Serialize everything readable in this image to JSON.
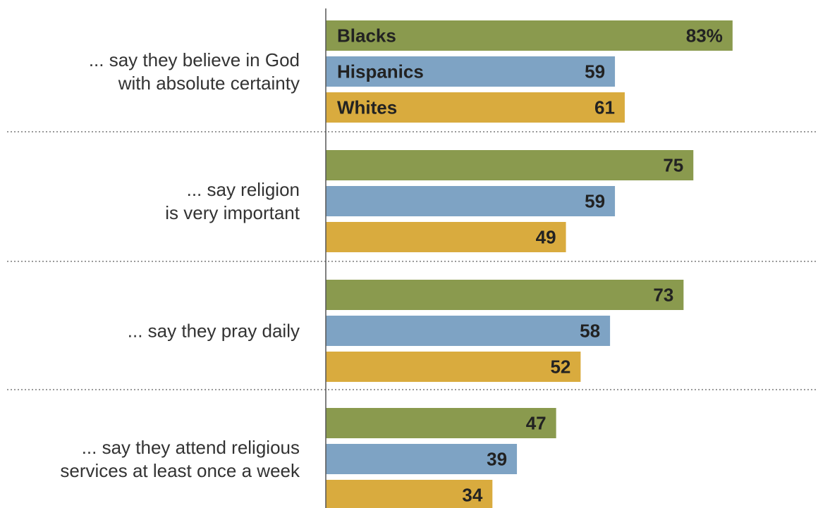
{
  "chart_data": {
    "type": "bar",
    "orientation": "horizontal",
    "categories": [
      [
        "... say they believe in God",
        "with absolute certainty"
      ],
      [
        "... say religion",
        "is very important"
      ],
      [
        "... say they pray daily"
      ],
      [
        "... say they attend religious",
        "services at least once a week"
      ]
    ],
    "series": [
      {
        "name": "Blacks",
        "color": "#8a9a4e",
        "values": [
          83,
          75,
          73,
          47
        ]
      },
      {
        "name": "Hispanics",
        "color": "#7ea3c4",
        "values": [
          59,
          59,
          58,
          39
        ]
      },
      {
        "name": "Whites",
        "color": "#d9ab3e",
        "values": [
          61,
          49,
          52,
          34
        ]
      }
    ],
    "value_labels": [
      [
        "83%",
        "75",
        "73",
        "47"
      ],
      [
        "59",
        "59",
        "58",
        "39"
      ],
      [
        "61",
        "49",
        "52",
        "34"
      ]
    ],
    "xlim": [
      0,
      100
    ],
    "grid": false,
    "legend": "inside-first-group-bars",
    "separator_style": "dotted"
  }
}
